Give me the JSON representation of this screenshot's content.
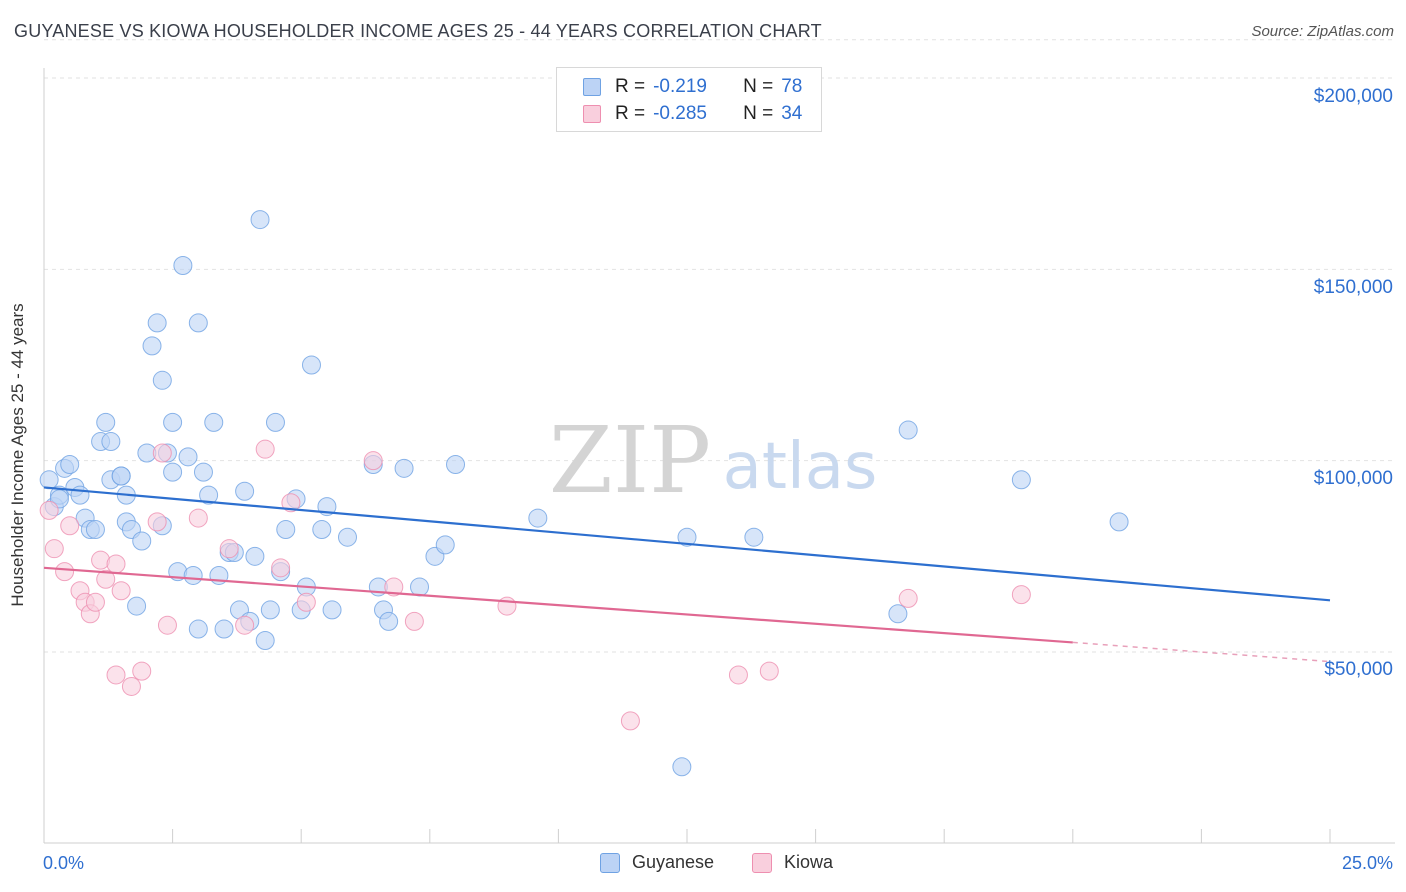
{
  "title": "GUYANESE VS KIOWA HOUSEHOLDER INCOME AGES 25 - 44 YEARS CORRELATION CHART",
  "source": "Source: ZipAtlas.com",
  "watermark": {
    "zip": "ZIP",
    "atlas": "atlas"
  },
  "stats": {
    "rows": [
      {
        "r_label": "R =",
        "r_value": "-0.219",
        "n_label": "N =",
        "n_value": "78",
        "color": "#6fa2e3",
        "fill": "#bcd3f5"
      },
      {
        "r_label": "R =",
        "r_value": "-0.285",
        "n_label": "N =",
        "n_value": "34",
        "color": "#ee8fb0",
        "fill": "#f9cfdd"
      }
    ]
  },
  "legend": {
    "items": [
      {
        "label": "Guyanese",
        "color": "#6fa2e3",
        "fill": "#bcd3f5"
      },
      {
        "label": "Kiowa",
        "color": "#ee8fb0",
        "fill": "#f9cfdd"
      }
    ]
  },
  "chart_data": {
    "type": "scatter",
    "title": "GUYANESE VS KIOWA HOUSEHOLDER INCOME AGES 25 - 44 YEARS CORRELATION CHART",
    "xlabel": "",
    "ylabel": "Householder Income Ages 25 - 44 years",
    "x_unit": "percent",
    "xlim": [
      0,
      25
    ],
    "ylim": [
      5000,
      210000
    ],
    "x_tick_labels": [
      "0.0%",
      "25.0%"
    ],
    "y_ticks": [
      50000,
      100000,
      150000,
      200000
    ],
    "y_tick_labels": [
      "$50,000",
      "$100,000",
      "$150,000",
      "$200,000"
    ],
    "grid": "horizontal dashed",
    "legend_position": "bottom",
    "series": [
      {
        "name": "Guyanese",
        "color": "#6fa2e3",
        "fill": "#bcd3f5",
        "trend": {
          "x": [
            0,
            25
          ],
          "y": [
            93000,
            63500
          ]
        },
        "points": [
          [
            0.1,
            95000
          ],
          [
            0.2,
            88000
          ],
          [
            0.3,
            91000
          ],
          [
            0.4,
            98000
          ],
          [
            0.5,
            99000
          ],
          [
            0.6,
            93000
          ],
          [
            0.7,
            91000
          ],
          [
            0.8,
            85000
          ],
          [
            0.9,
            82000
          ],
          [
            1.0,
            82000
          ],
          [
            1.1,
            105000
          ],
          [
            1.2,
            110000
          ],
          [
            1.3,
            105000
          ],
          [
            1.3,
            95000
          ],
          [
            1.5,
            96000
          ],
          [
            1.6,
            91000
          ],
          [
            1.6,
            84000
          ],
          [
            1.7,
            82000
          ],
          [
            1.8,
            62000
          ],
          [
            1.9,
            79000
          ],
          [
            2.0,
            102000
          ],
          [
            2.1,
            130000
          ],
          [
            2.2,
            136000
          ],
          [
            2.3,
            121000
          ],
          [
            2.4,
            102000
          ],
          [
            2.5,
            97000
          ],
          [
            2.5,
            110000
          ],
          [
            2.6,
            71000
          ],
          [
            2.7,
            151000
          ],
          [
            2.8,
            101000
          ],
          [
            2.9,
            70000
          ],
          [
            3.0,
            136000
          ],
          [
            3.1,
            97000
          ],
          [
            3.2,
            91000
          ],
          [
            3.3,
            110000
          ],
          [
            3.4,
            70000
          ],
          [
            3.5,
            56000
          ],
          [
            3.6,
            76000
          ],
          [
            3.7,
            76000
          ],
          [
            3.8,
            61000
          ],
          [
            3.9,
            92000
          ],
          [
            4.0,
            58000
          ],
          [
            4.1,
            75000
          ],
          [
            4.2,
            163000
          ],
          [
            4.3,
            53000
          ],
          [
            4.4,
            61000
          ],
          [
            4.5,
            110000
          ],
          [
            4.6,
            71000
          ],
          [
            4.7,
            82000
          ],
          [
            4.9,
            90000
          ],
          [
            5.0,
            61000
          ],
          [
            5.1,
            67000
          ],
          [
            5.2,
            125000
          ],
          [
            5.4,
            82000
          ],
          [
            5.5,
            88000
          ],
          [
            5.6,
            61000
          ],
          [
            5.9,
            80000
          ],
          [
            6.4,
            99000
          ],
          [
            6.5,
            67000
          ],
          [
            6.6,
            61000
          ],
          [
            6.7,
            58000
          ],
          [
            7.0,
            98000
          ],
          [
            7.6,
            75000
          ],
          [
            7.8,
            78000
          ],
          [
            8.0,
            99000
          ],
          [
            9.6,
            85000
          ],
          [
            3.0,
            56000
          ],
          [
            12.4,
            20000
          ],
          [
            12.5,
            80000
          ],
          [
            13.8,
            80000
          ],
          [
            16.6,
            60000
          ],
          [
            16.8,
            108000
          ],
          [
            19.0,
            95000
          ],
          [
            20.9,
            84000
          ],
          [
            0.3,
            90000
          ],
          [
            2.3,
            83000
          ],
          [
            1.5,
            96000
          ],
          [
            7.3,
            67000
          ]
        ]
      },
      {
        "name": "Kiowa",
        "color": "#ee8fb0",
        "fill": "#f9cfdd",
        "trend": {
          "x": [
            0,
            20
          ],
          "y": [
            72000,
            52500
          ]
        },
        "trend_ext": {
          "x": [
            20,
            25
          ],
          "y": [
            52500,
            47500
          ]
        },
        "points": [
          [
            0.1,
            87000
          ],
          [
            0.2,
            77000
          ],
          [
            0.4,
            71000
          ],
          [
            0.5,
            83000
          ],
          [
            0.7,
            66000
          ],
          [
            0.8,
            63000
          ],
          [
            0.9,
            60000
          ],
          [
            1.0,
            63000
          ],
          [
            1.1,
            74000
          ],
          [
            1.2,
            69000
          ],
          [
            1.4,
            73000
          ],
          [
            1.5,
            66000
          ],
          [
            1.4,
            44000
          ],
          [
            1.7,
            41000
          ],
          [
            1.9,
            45000
          ],
          [
            2.2,
            84000
          ],
          [
            2.3,
            102000
          ],
          [
            2.4,
            57000
          ],
          [
            3.0,
            85000
          ],
          [
            3.6,
            77000
          ],
          [
            3.9,
            57000
          ],
          [
            4.3,
            103000
          ],
          [
            4.6,
            72000
          ],
          [
            4.8,
            89000
          ],
          [
            5.1,
            63000
          ],
          [
            6.4,
            100000
          ],
          [
            6.8,
            67000
          ],
          [
            7.2,
            58000
          ],
          [
            9.0,
            62000
          ],
          [
            11.4,
            32000
          ],
          [
            13.5,
            44000
          ],
          [
            14.1,
            45000
          ],
          [
            16.8,
            64000
          ],
          [
            19.0,
            65000
          ]
        ]
      }
    ]
  }
}
